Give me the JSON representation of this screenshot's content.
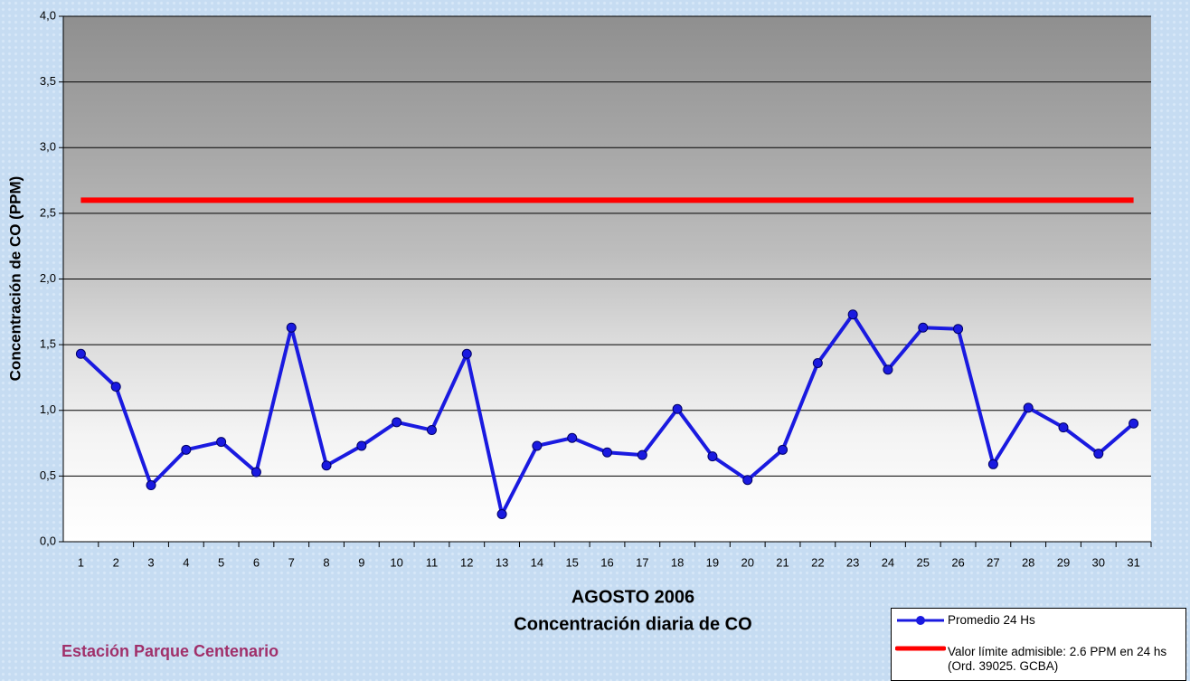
{
  "chart_data": {
    "type": "line",
    "title": "AGOSTO 2006",
    "subtitle": "Concentración diaria de CO",
    "y_label": "Concentración de CO (PPM)",
    "annotation": "Estación Parque Centenario",
    "categories": [
      "1",
      "2",
      "3",
      "4",
      "5",
      "6",
      "7",
      "8",
      "9",
      "10",
      "11",
      "12",
      "13",
      "14",
      "15",
      "16",
      "17",
      "18",
      "19",
      "20",
      "21",
      "22",
      "23",
      "24",
      "25",
      "26",
      "27",
      "28",
      "29",
      "30",
      "31"
    ],
    "series": [
      {
        "name": "Promedio 24 Hs",
        "color": "#1a1ae0",
        "markers": true,
        "values": [
          1.43,
          1.18,
          0.43,
          0.7,
          0.76,
          0.53,
          1.63,
          0.58,
          0.73,
          0.91,
          0.85,
          1.43,
          0.21,
          0.73,
          0.79,
          0.68,
          0.66,
          1.01,
          0.65,
          0.47,
          0.7,
          1.36,
          1.73,
          1.31,
          1.63,
          1.62,
          0.59,
          1.02,
          0.87,
          0.67,
          0.9
        ]
      },
      {
        "name": "Valor límite admisible: 2.6 PPM en 24 hs (Ord. 39025. GCBA)",
        "color": "#ff0000",
        "markers": false,
        "values": [
          2.6,
          2.6,
          2.6,
          2.6,
          2.6,
          2.6,
          2.6,
          2.6,
          2.6,
          2.6,
          2.6,
          2.6,
          2.6,
          2.6,
          2.6,
          2.6,
          2.6,
          2.6,
          2.6,
          2.6,
          2.6,
          2.6,
          2.6,
          2.6,
          2.6,
          2.6,
          2.6,
          2.6,
          2.6,
          2.6,
          2.6
        ]
      }
    ],
    "ylim": [
      0,
      4
    ],
    "yticks": [
      {
        "value": 0,
        "label": "0,0"
      },
      {
        "value": 0.5,
        "label": "0,5"
      },
      {
        "value": 1,
        "label": "1,0"
      },
      {
        "value": 1.5,
        "label": "1,5"
      },
      {
        "value": 2,
        "label": "2,0"
      },
      {
        "value": 2.5,
        "label": "2,5"
      },
      {
        "value": 3,
        "label": "3,0"
      },
      {
        "value": 3.5,
        "label": "3,5"
      },
      {
        "value": 4,
        "label": "4,0"
      }
    ],
    "grid": true
  }
}
